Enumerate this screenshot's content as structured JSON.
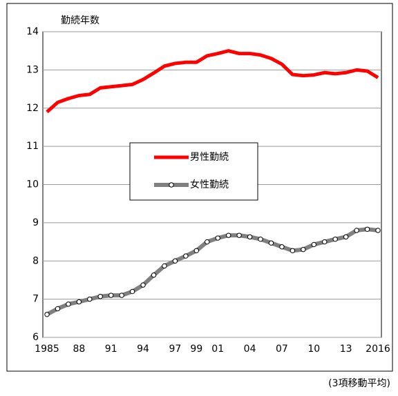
{
  "chart_data": {
    "type": "line",
    "ylabel": "勤続年数",
    "note": "(3項移動平均)",
    "categories": [
      "1985",
      null,
      null,
      "88",
      null,
      null,
      "91",
      null,
      null,
      "94",
      null,
      null,
      "97",
      null,
      "99",
      null,
      "01",
      null,
      null,
      "04",
      null,
      null,
      "07",
      null,
      null,
      "10",
      null,
      null,
      "13",
      null,
      null,
      "2016"
    ],
    "series": [
      {
        "name": "男性勤続",
        "color": "#ff0000",
        "marker": false,
        "values": [
          11.9,
          12.15,
          12.25,
          12.33,
          12.36,
          12.53,
          12.56,
          12.59,
          12.62,
          12.75,
          12.92,
          13.1,
          13.17,
          13.2,
          13.2,
          13.37,
          13.43,
          13.5,
          13.43,
          13.43,
          13.39,
          13.3,
          13.15,
          12.88,
          12.85,
          12.87,
          12.93,
          12.9,
          12.93,
          13.0,
          12.97,
          12.8
        ]
      },
      {
        "name": "女性勤続",
        "color": "#808080",
        "marker": true,
        "values": [
          6.6,
          6.75,
          6.87,
          6.93,
          7.0,
          7.07,
          7.1,
          7.1,
          7.2,
          7.37,
          7.63,
          7.87,
          8.0,
          8.13,
          8.27,
          8.5,
          8.6,
          8.67,
          8.67,
          8.63,
          8.57,
          8.47,
          8.37,
          8.27,
          8.3,
          8.43,
          8.5,
          8.57,
          8.63,
          8.8,
          8.83,
          8.8
        ]
      }
    ],
    "ylim": [
      6,
      14
    ],
    "yticks": [
      6,
      7,
      8,
      9,
      10,
      11,
      12,
      13,
      14
    ],
    "grid": true,
    "legend": "center"
  }
}
